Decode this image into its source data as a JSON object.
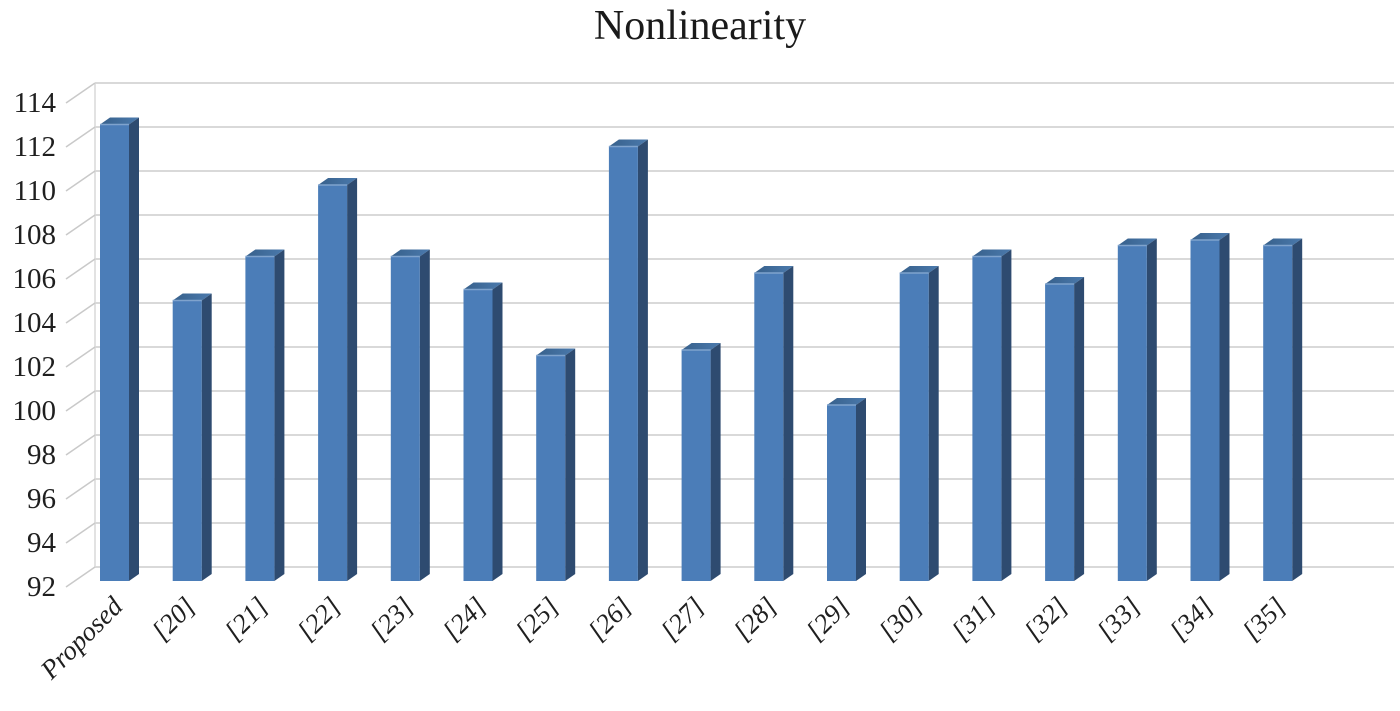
{
  "chart_data": {
    "type": "bar",
    "style": "3d-column",
    "title": "Nonlinearity",
    "categories": [
      "Proposed",
      "[20]",
      "[21]",
      "[22]",
      "[23]",
      "[24]",
      "[25]",
      "[26]",
      "[27]",
      "[28]",
      "[29]",
      "[30]",
      "[31]",
      "[32]",
      "[33]",
      "[34]",
      "[35]"
    ],
    "values": [
      112.75,
      104.75,
      106.75,
      110,
      106.75,
      105.25,
      102.25,
      111.75,
      102.5,
      106,
      100,
      106,
      106.75,
      105.5,
      107.25,
      107.5,
      107.25
    ],
    "ylim": [
      92,
      114
    ],
    "yticks": [
      92,
      94,
      96,
      98,
      100,
      102,
      104,
      106,
      108,
      110,
      112,
      114
    ],
    "ytick_step": 2,
    "grid": true,
    "legend": false,
    "xlabel": "",
    "ylabel": "",
    "colors": {
      "bar_front": "#4b7db8",
      "bar_side": "#2e4b70",
      "bar_top_left": "#37608b",
      "bar_top_right": "#4b7aad",
      "bar_top_highlight": "#7fa3cd",
      "gridline": "#d9d9d9",
      "tick_elbow": "#c9c9c9",
      "text": "#1f1f1f",
      "background": "#ffffff"
    }
  }
}
